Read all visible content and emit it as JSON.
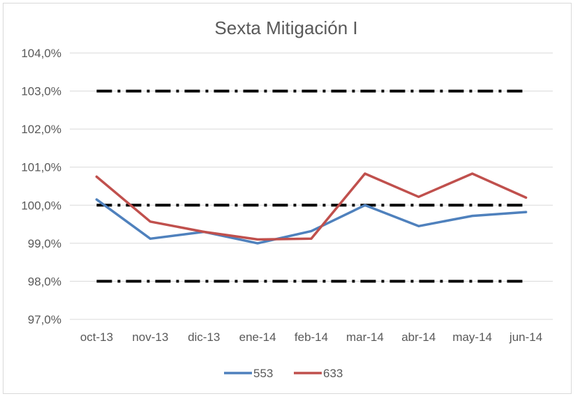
{
  "chart_data": {
    "type": "line",
    "title": "Sexta Mitigación I",
    "xlabel": "",
    "ylabel": "",
    "categories": [
      "oct-13",
      "nov-13",
      "dic-13",
      "ene-14",
      "feb-14",
      "mar-14",
      "abr-14",
      "may-14",
      "jun-14"
    ],
    "ylim": [
      97.0,
      104.0
    ],
    "yticks": [
      97.0,
      98.0,
      99.0,
      100.0,
      101.0,
      102.0,
      103.0,
      104.0
    ],
    "ytick_labels": [
      "97,0%",
      "98,0%",
      "99,0%",
      "100,0%",
      "101,0%",
      "102,0%",
      "103,0%",
      "104,0%"
    ],
    "grid": true,
    "legend_position": "bottom",
    "series": [
      {
        "name": "553",
        "color": "#4f81bd",
        "values": [
          100.15,
          99.12,
          99.3,
          99.0,
          99.32,
          100.0,
          99.45,
          99.72,
          99.82
        ]
      },
      {
        "name": "633",
        "color": "#c0504d",
        "values": [
          100.75,
          99.57,
          99.3,
          99.1,
          99.12,
          100.83,
          100.22,
          100.83,
          100.2
        ]
      }
    ],
    "reference_lines": [
      {
        "value": 103.0,
        "color": "#000000",
        "style": "dash-dot"
      },
      {
        "value": 100.0,
        "color": "#000000",
        "style": "dash-dot"
      },
      {
        "value": 98.0,
        "color": "#000000",
        "style": "dash-dot"
      }
    ]
  }
}
